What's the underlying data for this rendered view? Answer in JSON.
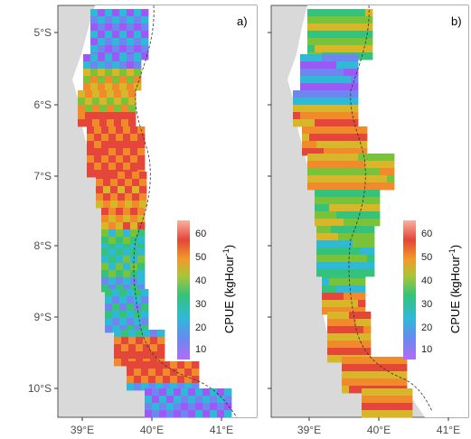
{
  "panels": [
    {
      "label": "a)",
      "legend": {
        "title": "CPUE (kgHour",
        "title_sup": "-1",
        "title_end": ")",
        "ticks": [
          "60",
          "50",
          "40",
          "30",
          "20",
          "10"
        ]
      }
    },
    {
      "label": "b)",
      "legend": {
        "title": "CPUE (kgHour",
        "title_sup": "-1",
        "title_end": ")",
        "ticks": [
          "60",
          "50",
          "40",
          "30",
          "20",
          "10"
        ]
      }
    }
  ],
  "axes": {
    "y_ticks": [
      "5°S",
      "6°S",
      "7°S",
      "8°S",
      "9°S",
      "10°S"
    ],
    "x_ticks": [
      "39°E",
      "40°E",
      "41°E"
    ]
  },
  "colors": {
    "land": "#d9d9d9",
    "sea": "#ffffff",
    "contour": "#333333",
    "scale": [
      "#9b59f5",
      "#4a86f0",
      "#2fb9d6",
      "#35c27a",
      "#7ac23a",
      "#d8b62a",
      "#f08a2a",
      "#e4463a",
      "#f6b39f"
    ]
  }
}
